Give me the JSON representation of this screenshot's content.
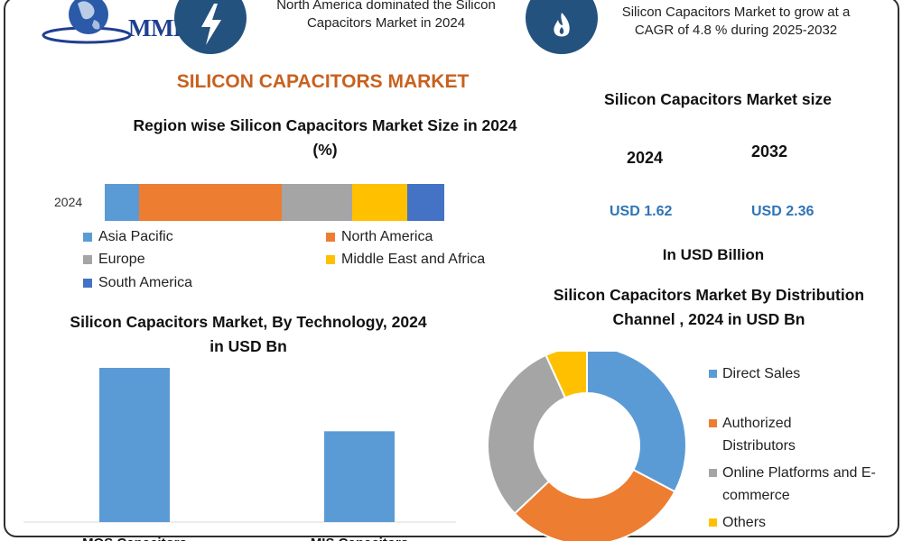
{
  "header": {
    "logo_text": "MMR",
    "text1": "North America dominated the Silicon Capacitors Market in 2024",
    "text2": "Silicon Capacitors Market to grow at a CAGR of 4.8 % during 2025-2032",
    "bolt_icon": "lightning-bolt-icon",
    "flame_icon": "flame-icon",
    "icon_bg": "#24527e"
  },
  "main_title": "SILICON CAPACITORS MARKET",
  "colors": {
    "title": "#c8611e",
    "usd": "#2e74b5"
  },
  "market_size": {
    "title": "Silicon Capacitors Market size",
    "year1": "2024",
    "year2": "2032",
    "value1": "USD 1.62",
    "value2": "USD 2.36",
    "unit": "In USD Billion"
  },
  "chart_data": [
    {
      "type": "bar",
      "stacked": true,
      "orientation": "horizontal",
      "title": "Region wise Silicon Capacitors Market Size in 2024 (%)",
      "categories": [
        "2024"
      ],
      "series": [
        {
          "name": "Asia Pacific",
          "values": [
            10
          ],
          "color": "#5b9bd5"
        },
        {
          "name": "North America",
          "values": [
            42
          ],
          "color": "#ed7d31"
        },
        {
          "name": "Europe",
          "values": [
            21
          ],
          "color": "#a5a5a5"
        },
        {
          "name": "Middle East and Africa",
          "values": [
            16
          ],
          "color": "#ffc000"
        },
        {
          "name": "South America",
          "values": [
            11
          ],
          "color": "#4472c4"
        }
      ],
      "legend_position": "bottom"
    },
    {
      "type": "bar",
      "title": "Silicon Capacitors Market, By Technology, 2024 in USD Bn",
      "categories": [
        "MOS Capacitors",
        "MIS Capacitors"
      ],
      "values": [
        0.9,
        0.53
      ],
      "color": "#5b9bd5",
      "ylim": [
        0,
        1.0
      ],
      "grid": false
    },
    {
      "type": "pie",
      "donut": true,
      "title": "Silicon Capacitors Market By Distribution Channel , 2024 in USD Bn",
      "labels": [
        "Direct Sales",
        "Authorized Distributors",
        "Online Platforms and E-commerce",
        "Others"
      ],
      "values": [
        0.53,
        0.49,
        0.49,
        0.11
      ],
      "colors": [
        "#5b9bd5",
        "#ed7d31",
        "#a5a5a5",
        "#ffc000"
      ],
      "legend_position": "right"
    }
  ]
}
